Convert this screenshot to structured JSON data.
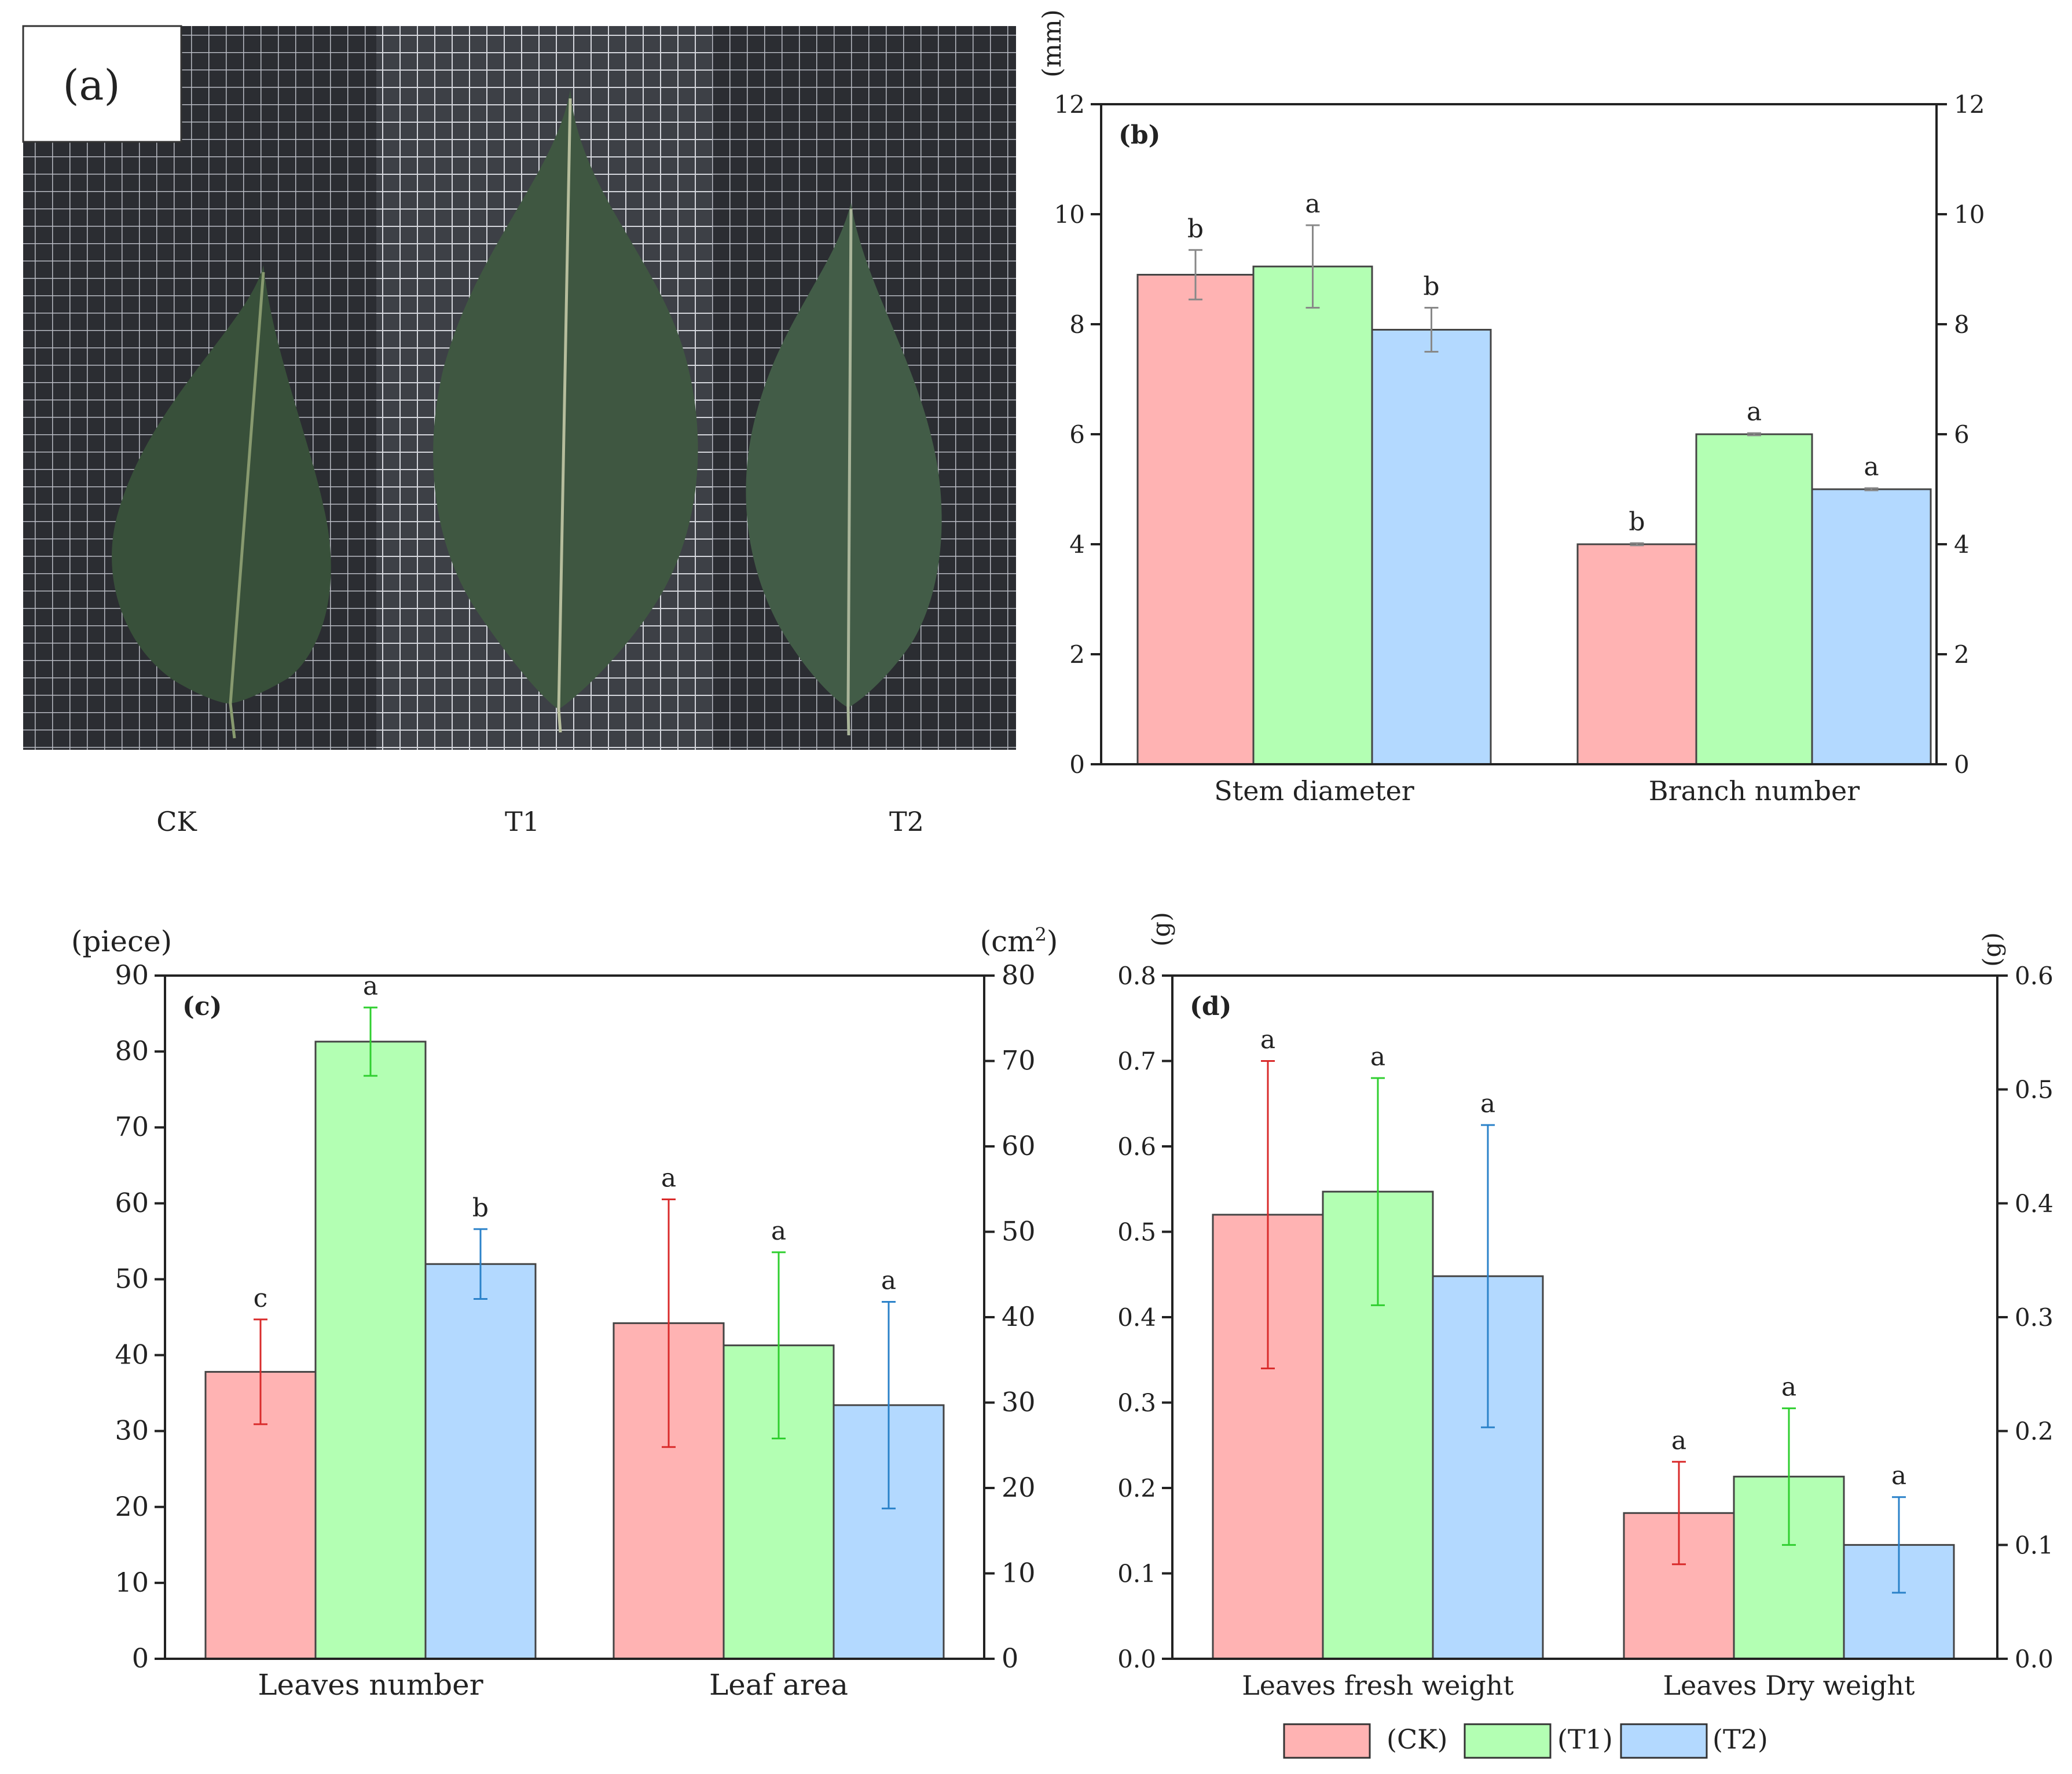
{
  "panel_a": {
    "label": "(a)",
    "leaves": [
      "CK",
      "T1",
      "T2"
    ],
    "leaf_color": "#3b5538",
    "grid_bg": "#2a2c30"
  },
  "colors": {
    "CK": "#ffb3b3",
    "T1": "#b3ffb3",
    "T2": "#b3d9ff",
    "CK_err": "#d92b2b",
    "T1_err": "#2fcf2f",
    "T2_err": "#2b82c9",
    "gray_err": "#888888"
  },
  "legend": {
    "items": [
      "(CK)",
      "(T1)",
      "(T2)"
    ]
  },
  "chart_data": [
    {
      "id": "b",
      "type": "bar",
      "panel_label": "(b)",
      "categories": [
        "Stem diameter",
        "Branch number"
      ],
      "series": [
        {
          "name": "CK",
          "values": [
            8.9,
            4.0
          ],
          "errors": [
            0.45,
            0.02
          ],
          "letters": [
            "b",
            "b"
          ]
        },
        {
          "name": "T1",
          "values": [
            9.05,
            6.0
          ],
          "errors": [
            0.75,
            0.02
          ],
          "letters": [
            "a",
            "a"
          ]
        },
        {
          "name": "T2",
          "values": [
            7.9,
            5.0
          ],
          "errors": [
            0.4,
            0.02
          ],
          "letters": [
            "b",
            "a"
          ]
        }
      ],
      "ylabel_left": "(mm)",
      "ylim_left": [
        0,
        12
      ],
      "yticks_left": [
        0,
        2,
        4,
        6,
        8,
        10,
        12
      ],
      "ylim_right": [
        0,
        12
      ],
      "yticks_right": [
        0,
        2,
        4,
        6,
        8,
        10,
        12
      ],
      "secondary_axis_categories": []
    },
    {
      "id": "c",
      "type": "bar",
      "panel_label": "(c)",
      "categories": [
        "Leaves number",
        "Leaf area"
      ],
      "series": [
        {
          "name": "CK",
          "values": [
            37.8,
            39.3
          ],
          "errors": [
            6.9,
            14.5
          ],
          "letters": [
            "c",
            "a"
          ]
        },
        {
          "name": "T1",
          "values": [
            81.3,
            36.7
          ],
          "errors": [
            4.5,
            10.9
          ],
          "letters": [
            "a",
            "a"
          ]
        },
        {
          "name": "T2",
          "values": [
            52.0,
            29.7
          ],
          "errors": [
            4.6,
            12.1
          ],
          "letters": [
            "b",
            "a"
          ]
        }
      ],
      "ylabel_left": "(piece)",
      "ylabel_right": "(cm",
      "ylabel_right_sup": "2",
      "ylabel_right_end": ")",
      "ylim_left": [
        0,
        90
      ],
      "yticks_left": [
        0,
        10,
        20,
        30,
        40,
        50,
        60,
        70,
        80,
        90
      ],
      "ylim_right": [
        0,
        80
      ],
      "yticks_right": [
        0,
        10,
        20,
        30,
        40,
        50,
        60,
        70,
        80
      ],
      "secondary_axis_categories": [
        "Leaf area"
      ]
    },
    {
      "id": "d",
      "type": "bar",
      "panel_label": "(d)",
      "categories": [
        "Leaves fresh weight",
        "Leaves Dry weight"
      ],
      "series": [
        {
          "name": "CK",
          "values": [
            0.52,
            0.128
          ],
          "errors": [
            0.18,
            0.045
          ],
          "letters": [
            "a",
            "a"
          ]
        },
        {
          "name": "T1",
          "values": [
            0.547,
            0.16
          ],
          "errors": [
            0.133,
            0.06
          ],
          "letters": [
            "a",
            "a"
          ]
        },
        {
          "name": "T2",
          "values": [
            0.448,
            0.1
          ],
          "errors": [
            0.177,
            0.042
          ],
          "letters": [
            "a",
            "a"
          ]
        }
      ],
      "ylabel_left": "(g)",
      "ylabel_right": "(g)",
      "ylim_left": [
        0,
        0.8
      ],
      "yticks_left": [
        "0.0",
        "0.1",
        "0.2",
        "0.3",
        "0.4",
        "0.5",
        "0.6",
        "0.7",
        "0.8"
      ],
      "ylim_right": [
        0,
        0.6
      ],
      "yticks_right": [
        "0.0",
        "0.1",
        "0.2",
        "0.3",
        "0.4",
        "0.5",
        "0.6"
      ],
      "secondary_axis_categories": [
        "Leaves Dry weight"
      ]
    }
  ]
}
